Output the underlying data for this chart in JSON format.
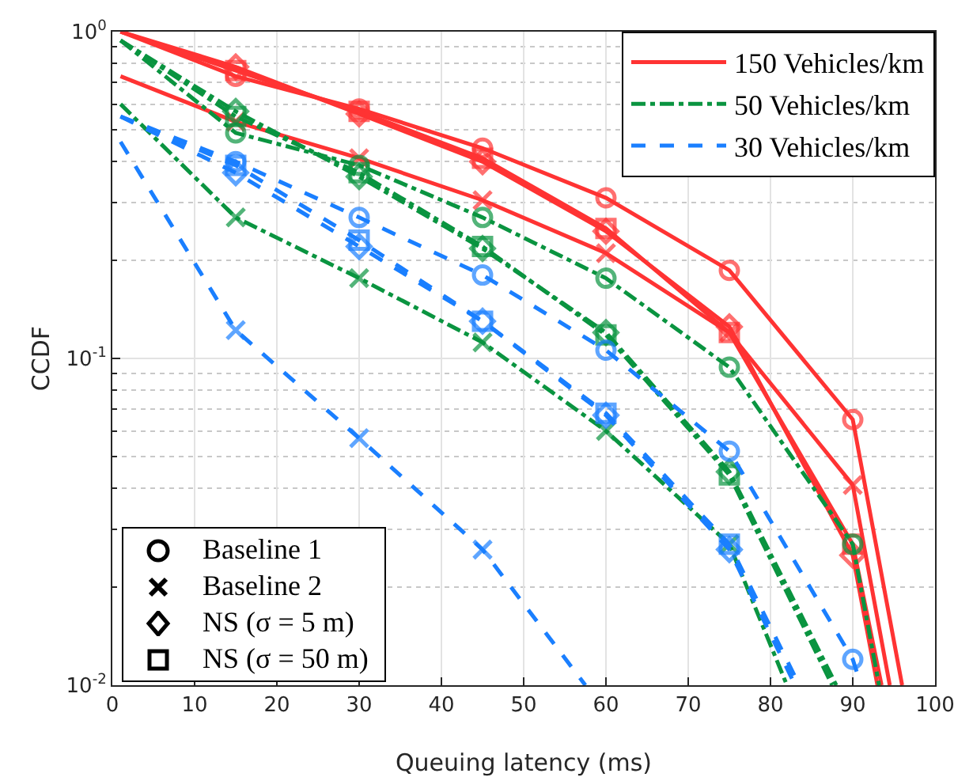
{
  "chart_data": {
    "type": "line",
    "xlabel": "Queuing latency (ms)",
    "ylabel": "CCDF",
    "log": "y",
    "grid": true,
    "legend": "top right",
    "xlim": [
      0,
      100
    ],
    "xticks": [
      0,
      10,
      20,
      30,
      40,
      50,
      60,
      70,
      80,
      90,
      100
    ],
    "ylim": [
      0.01,
      1
    ],
    "yticks": [
      {
        "value": 0.01,
        "label": "10$^{-2}$"
      },
      {
        "value": 0.1,
        "label": "10$^{-1}$"
      },
      {
        "value": 1,
        "label": "10$^{0}$"
      }
    ],
    "annotations": [
      "Baseline 1",
      "Baseline 2",
      "NS (σ = 5 m)",
      "NS (σ = 50 m)"
    ],
    "series": [
      {
        "name": "150 Vehicles/km",
        "color": "#ff3333",
        "line_style": "solid",
        "marker": "circle",
        "x": [
          1,
          15,
          30,
          45,
          60,
          75,
          90,
          96
        ],
        "values": [
          1,
          0.73,
          0.58,
          0.44,
          0.31,
          0.186,
          0.065,
          0.01
        ]
      },
      {
        "color": "#ff3333",
        "line_style": "solid",
        "marker": "cross",
        "x": [
          1,
          15,
          30,
          45,
          60,
          75,
          90,
          94.5
        ],
        "values": [
          0.73,
          0.53,
          0.41,
          0.305,
          0.21,
          0.12,
          0.041,
          0.01
        ]
      },
      {
        "color": "#ff3333",
        "line_style": "solid",
        "marker": "diamond",
        "x": [
          1,
          15,
          30,
          45,
          60,
          75,
          90,
          93
        ],
        "values": [
          1,
          0.78,
          0.56,
          0.4,
          0.245,
          0.125,
          0.025,
          0.01
        ]
      },
      {
        "color": "#ff3333",
        "line_style": "solid",
        "marker": "square",
        "x": [
          1,
          15,
          30,
          45,
          60,
          75,
          90,
          93.5
        ],
        "values": [
          1,
          0.76,
          0.57,
          0.41,
          0.25,
          0.12,
          0.027,
          0.01
        ]
      },
      {
        "name": "50 Vehicles/km",
        "color": "#0a9440",
        "line_style": "dashdot",
        "marker": "circle",
        "x": [
          1,
          15,
          30,
          45,
          60,
          75,
          90,
          93.2
        ],
        "values": [
          0.94,
          0.49,
          0.39,
          0.27,
          0.176,
          0.094,
          0.027,
          0.01
        ]
      },
      {
        "color": "#0a9440",
        "line_style": "dashdot",
        "marker": "cross",
        "x": [
          1,
          15,
          30,
          45,
          60,
          75,
          82
        ],
        "values": [
          0.6,
          0.27,
          0.176,
          0.112,
          0.06,
          0.027,
          0.01
        ]
      },
      {
        "color": "#0a9440",
        "line_style": "dashdot",
        "marker": "diamond",
        "x": [
          1,
          15,
          30,
          45,
          60,
          75,
          88
        ],
        "values": [
          0.94,
          0.57,
          0.36,
          0.217,
          0.12,
          0.045,
          0.01
        ]
      },
      {
        "color": "#0a9440",
        "line_style": "dashdot",
        "marker": "square",
        "x": [
          1,
          15,
          30,
          45,
          60,
          75,
          87.5
        ],
        "values": [
          0.94,
          0.55,
          0.37,
          0.22,
          0.118,
          0.044,
          0.01
        ]
      },
      {
        "name": "30 Vehicles/km",
        "color": "#1a7fff",
        "line_style": "dashed",
        "marker": "circle",
        "x": [
          1,
          15,
          30,
          45,
          60,
          75,
          90,
          91
        ],
        "values": [
          0.55,
          0.4,
          0.27,
          0.18,
          0.106,
          0.052,
          0.012,
          0.01
        ]
      },
      {
        "color": "#1a7fff",
        "line_style": "dashed",
        "marker": "cross",
        "x": [
          1,
          15,
          30,
          45,
          57.5
        ],
        "values": [
          0.46,
          0.122,
          0.057,
          0.026,
          0.01
        ]
      },
      {
        "color": "#1a7fff",
        "line_style": "dashed",
        "marker": "diamond",
        "x": [
          1,
          15,
          30,
          45,
          60,
          75,
          83
        ],
        "values": [
          0.55,
          0.37,
          0.22,
          0.13,
          0.067,
          0.026,
          0.01
        ]
      },
      {
        "color": "#1a7fff",
        "line_style": "dashed",
        "marker": "square",
        "x": [
          1,
          15,
          30,
          45,
          60,
          75,
          83.5
        ],
        "values": [
          0.55,
          0.39,
          0.23,
          0.13,
          0.068,
          0.027,
          0.01
        ]
      }
    ]
  }
}
